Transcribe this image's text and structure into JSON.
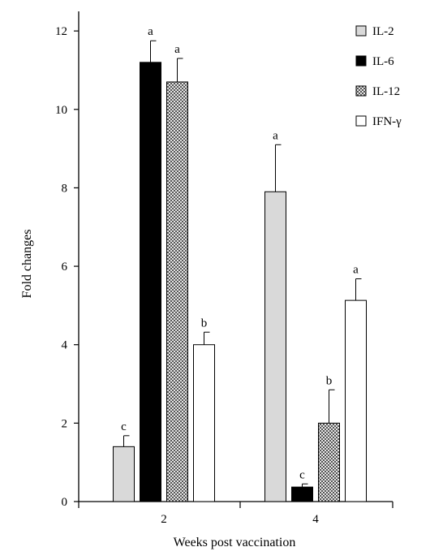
{
  "chart_data": {
    "type": "bar",
    "title": "",
    "xlabel": "Weeks post vaccination",
    "ylabel": "Fold changes",
    "ylim": [
      0,
      12.5
    ],
    "yticks": [
      "0",
      "2",
      "4",
      "6",
      "8",
      "10",
      "12"
    ],
    "categories": [
      "2",
      "4"
    ],
    "grid": false,
    "legend_position": "top-right",
    "series": [
      {
        "name": "IL-2",
        "fill": "#d9d9d9",
        "pattern": "solid",
        "values": [
          1.4,
          7.9
        ],
        "errors": [
          0.28,
          1.2
        ],
        "labels": [
          "c",
          "a"
        ]
      },
      {
        "name": "IL-6",
        "fill": "#000000",
        "pattern": "solid",
        "values": [
          11.2,
          0.37
        ],
        "errors": [
          0.55,
          0.08
        ],
        "labels": [
          "a",
          "c"
        ]
      },
      {
        "name": "IL-12",
        "fill": "#7a7a7a",
        "pattern": "checker",
        "values": [
          10.7,
          2.0
        ],
        "errors": [
          0.6,
          0.85
        ],
        "labels": [
          "a",
          "b"
        ]
      },
      {
        "name": "IFN-γ",
        "fill": "#ffffff",
        "pattern": "solid",
        "values": [
          4.0,
          5.13
        ],
        "errors": [
          0.32,
          0.55
        ],
        "labels": [
          "b",
          "a"
        ]
      }
    ]
  }
}
